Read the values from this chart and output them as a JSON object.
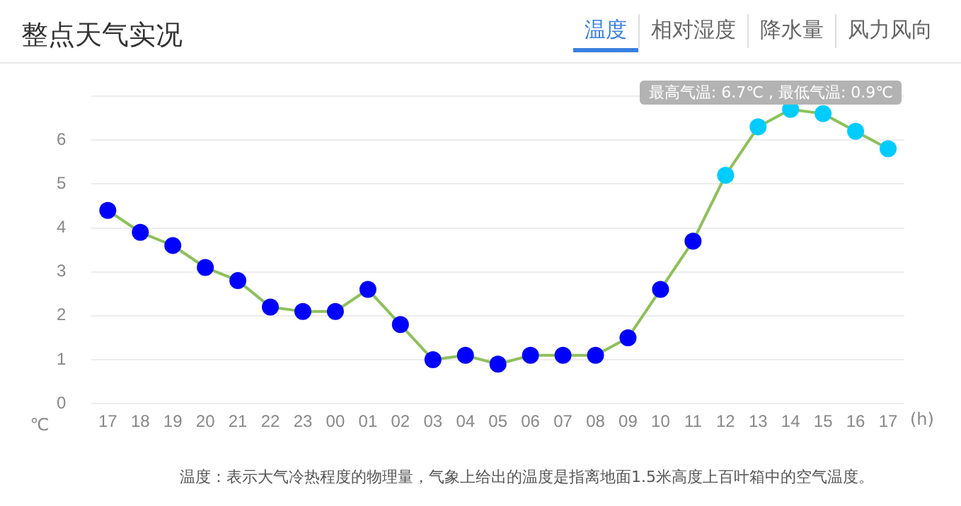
{
  "chart_data": {
    "type": "line",
    "title": "整点天气实况",
    "xlabel": "(h)",
    "ylabel": "℃",
    "annotations": [
      "温度",
      "相对湿度",
      "降水量",
      "风力风向",
      "最高气温: 6.7℃ , 最低气温: 0.9℃",
      "温度：表示大气冷热程度的物理量，气象上给出的温度是指离地面1.5米高度上百叶箱中的空气温度。"
    ],
    "categories": [
      "17",
      "18",
      "19",
      "20",
      "21",
      "22",
      "23",
      "00",
      "01",
      "02",
      "03",
      "04",
      "05",
      "06",
      "07",
      "08",
      "09",
      "10",
      "11",
      "12",
      "13",
      "14",
      "15",
      "16",
      "17"
    ],
    "series": [
      {
        "color": "#8dc05a",
        "colors": [
          "#0000ff",
          "#0000ff",
          "#0000ff",
          "#0000ff",
          "#0000ff",
          "#0000ff",
          "#0000ff",
          "#0000ff",
          "#0000ff",
          "#0000ff",
          "#0000ff",
          "#0000ff",
          "#0000ff",
          "#0000ff",
          "#0000ff",
          "#0000ff",
          "#0000ff",
          "#0000ff",
          "#0000ff",
          "#00ccff",
          "#00ccff",
          "#00ccff",
          "#00ccff",
          "#00ccff",
          "#00ccff"
        ],
        "values": [
          4.4,
          3.9,
          3.6,
          3.1,
          2.8,
          2.2,
          2.1,
          2.1,
          2.6,
          1.8,
          1.0,
          1.1,
          0.9,
          1.1,
          1.1,
          1.1,
          1.5,
          2.6,
          3.7,
          5.2,
          6.3,
          6.7,
          6.6,
          6.2,
          5.8
        ]
      }
    ],
    "ylim": [
      0,
      7
    ],
    "yticks": [
      0,
      1,
      2,
      3,
      4,
      5,
      6,
      {
        "value": 7,
        "label": null
      }
    ],
    "grid": "y",
    "legend": false,
    "marker": "circle",
    "line_style": "solid"
  }
}
